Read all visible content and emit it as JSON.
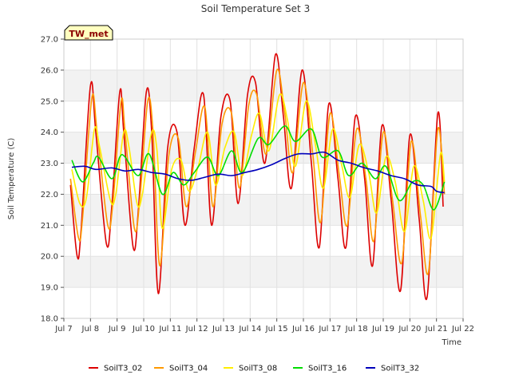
{
  "chart_data": {
    "type": "line",
    "title": "Soil Temperature Set 3",
    "xlabel": "Time",
    "ylabel": "Soil Temperature (C)",
    "badge": "TW_met",
    "ylim": [
      18.0,
      27.0
    ],
    "xlim": [
      7,
      22
    ],
    "y_ticks": [
      "18.0",
      "19.0",
      "20.0",
      "21.0",
      "22.0",
      "23.0",
      "24.0",
      "25.0",
      "26.0",
      "27.0"
    ],
    "x_ticks": [
      "Jul 7",
      "Jul 8",
      "Jul 9",
      "Jul 10",
      "Jul 11",
      "Jul 12",
      "Jul 13",
      "Jul 14",
      "Jul 15",
      "Jul 16",
      "Jul 17",
      "Jul 18",
      "Jul 19",
      "Jul 20",
      "Jul 21",
      "Jul 22"
    ],
    "grid": true,
    "legend_position": "bottom",
    "series": [
      {
        "name": "SoilT3_02",
        "color": "#dd0000",
        "x": [
          7.25,
          7.5,
          7.65,
          8.0,
          8.2,
          8.6,
          8.8,
          9.1,
          9.25,
          9.6,
          9.8,
          10.1,
          10.3,
          10.55,
          10.9,
          11.25,
          11.55,
          11.9,
          12.25,
          12.55,
          12.9,
          13.25,
          13.55,
          13.9,
          14.2,
          14.55,
          14.95,
          15.25,
          15.55,
          15.95,
          16.3,
          16.6,
          16.95,
          17.3,
          17.6,
          17.95,
          18.3,
          18.6,
          18.95,
          19.3,
          19.65,
          20.0,
          20.35,
          20.65,
          21.05,
          21.25
        ],
        "y": [
          22.3,
          20.0,
          20.9,
          25.5,
          24.0,
          20.4,
          21.6,
          25.3,
          24.0,
          20.3,
          21.5,
          25.3,
          24.0,
          18.8,
          23.5,
          24.0,
          21.0,
          23.5,
          25.2,
          21.0,
          24.5,
          25.0,
          21.7,
          25.2,
          25.6,
          23.0,
          26.5,
          24.5,
          22.2,
          26.0,
          23.0,
          20.3,
          24.9,
          22.5,
          20.3,
          24.5,
          22.5,
          19.7,
          24.2,
          21.8,
          18.9,
          23.9,
          21.2,
          18.7,
          24.6,
          21.6
        ]
      },
      {
        "name": "SoilT3_04",
        "color": "#ff9900",
        "x": [
          7.25,
          7.55,
          7.7,
          8.05,
          8.25,
          8.65,
          8.85,
          9.15,
          9.3,
          9.65,
          9.85,
          10.15,
          10.35,
          10.6,
          10.95,
          11.3,
          11.6,
          11.95,
          12.3,
          12.6,
          12.95,
          13.3,
          13.6,
          13.95,
          14.25,
          14.6,
          15.0,
          15.3,
          15.6,
          16.0,
          16.35,
          16.65,
          17.0,
          17.35,
          17.65,
          18.0,
          18.35,
          18.65,
          19.0,
          19.35,
          19.7,
          20.05,
          20.4,
          20.7,
          21.05,
          21.3
        ],
        "y": [
          22.5,
          20.6,
          21.2,
          25.1,
          24.0,
          21.0,
          21.8,
          25.0,
          24.0,
          20.9,
          21.8,
          25.0,
          24.0,
          19.7,
          23.3,
          23.8,
          21.6,
          23.4,
          24.8,
          21.6,
          24.3,
          24.6,
          22.2,
          24.9,
          25.2,
          23.3,
          26.0,
          24.6,
          22.7,
          25.6,
          23.3,
          21.1,
          24.6,
          22.6,
          21.0,
          24.1,
          22.5,
          20.5,
          24.0,
          21.8,
          19.8,
          23.7,
          21.3,
          19.5,
          24.1,
          22.0
        ]
      },
      {
        "name": "SoilT3_08",
        "color": "#ffee00",
        "x": [
          7.3,
          7.6,
          7.85,
          8.15,
          8.35,
          8.75,
          8.95,
          9.25,
          9.45,
          9.75,
          9.95,
          10.3,
          10.5,
          10.7,
          11.05,
          11.4,
          11.7,
          12.05,
          12.4,
          12.7,
          13.05,
          13.4,
          13.7,
          14.05,
          14.35,
          14.7,
          15.1,
          15.4,
          15.7,
          16.1,
          16.45,
          16.75,
          17.1,
          17.45,
          17.75,
          18.1,
          18.45,
          18.75,
          19.1,
          19.45,
          19.8,
          20.15,
          20.5,
          20.8,
          21.15,
          21.3
        ],
        "y": [
          22.8,
          21.7,
          21.9,
          24.1,
          23.5,
          21.8,
          22.0,
          24.0,
          23.5,
          21.7,
          22.0,
          24.0,
          23.4,
          20.9,
          22.8,
          23.1,
          22.1,
          22.9,
          24.0,
          22.3,
          23.5,
          24.0,
          22.6,
          23.9,
          24.6,
          23.4,
          25.2,
          24.4,
          22.9,
          25.0,
          23.6,
          22.2,
          24.1,
          22.9,
          21.9,
          23.6,
          22.7,
          21.4,
          23.2,
          22.4,
          20.8,
          22.9,
          21.8,
          20.6,
          23.3,
          22.4
        ]
      },
      {
        "name": "SoilT3_16",
        "color": "#00dd00",
        "x": [
          7.3,
          7.7,
          8.1,
          8.3,
          8.8,
          9.1,
          9.3,
          9.8,
          10.2,
          10.7,
          11.1,
          11.5,
          11.9,
          12.4,
          12.8,
          13.3,
          13.7,
          14.3,
          14.7,
          15.3,
          15.7,
          16.3,
          16.7,
          17.3,
          17.7,
          18.2,
          18.7,
          19.1,
          19.6,
          20.1,
          20.5,
          20.9,
          21.3
        ],
        "y": [
          23.1,
          22.4,
          23.0,
          23.2,
          22.5,
          23.2,
          23.2,
          22.6,
          23.3,
          22.0,
          22.7,
          22.3,
          22.7,
          23.2,
          22.6,
          23.4,
          22.7,
          23.8,
          23.6,
          24.2,
          23.7,
          24.1,
          23.2,
          23.4,
          22.6,
          23.0,
          22.5,
          22.9,
          21.8,
          22.4,
          22.3,
          21.5,
          22.4
        ]
      },
      {
        "name": "SoilT3_32",
        "color": "#0000bb",
        "x": [
          7.3,
          7.8,
          8.2,
          8.8,
          9.3,
          9.8,
          10.3,
          10.8,
          11.3,
          11.8,
          12.3,
          12.8,
          13.3,
          13.8,
          14.3,
          14.8,
          15.3,
          15.8,
          16.3,
          16.8,
          17.3,
          17.8,
          18.3,
          18.8,
          19.3,
          19.8,
          20.3,
          20.8,
          21.0,
          21.3
        ],
        "y": [
          22.87,
          22.9,
          22.8,
          22.85,
          22.75,
          22.8,
          22.7,
          22.65,
          22.5,
          22.45,
          22.55,
          22.65,
          22.6,
          22.7,
          22.8,
          22.95,
          23.15,
          23.3,
          23.3,
          23.35,
          23.1,
          23.0,
          22.85,
          22.75,
          22.6,
          22.5,
          22.3,
          22.25,
          22.1,
          22.05
        ]
      }
    ]
  }
}
